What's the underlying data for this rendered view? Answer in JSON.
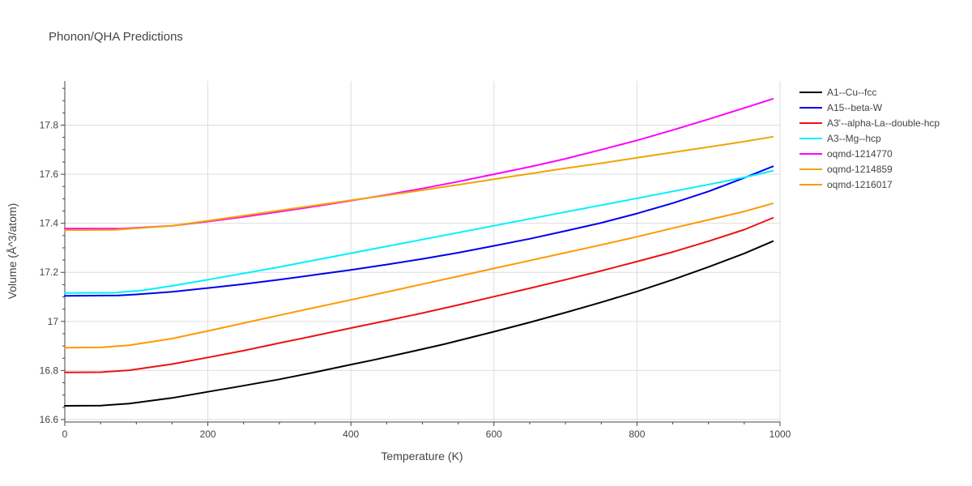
{
  "chart_data": {
    "type": "line",
    "title": "Phonon/QHA Predictions",
    "xlabel": "Temperature (K)",
    "ylabel": "Volume (Å^3/atom)",
    "xlim": [
      0,
      1000
    ],
    "ylim": [
      16.59,
      17.98
    ],
    "xticks": [
      0,
      200,
      400,
      600,
      800,
      1000
    ],
    "xtick_labels": [
      "0",
      "200",
      "400",
      "600",
      "800",
      "1000"
    ],
    "yticks": [
      16.6,
      16.8,
      17.0,
      17.2,
      17.4,
      17.6,
      17.8
    ],
    "ytick_labels": [
      "16.6",
      "16.8",
      "17",
      "17.2",
      "17.4",
      "17.6",
      "17.8"
    ],
    "grid": true,
    "legend_position": "right",
    "series": [
      {
        "name": "A1--Cu--fcc",
        "color": "#000000",
        "x": [
          0,
          50,
          90,
          150,
          200,
          240,
          300,
          350,
          400,
          430,
          480,
          530,
          600,
          650,
          700,
          750,
          800,
          850,
          900,
          950,
          990
        ],
        "y": [
          16.656,
          16.657,
          16.665,
          16.688,
          16.713,
          16.733,
          16.764,
          16.793,
          16.824,
          16.842,
          16.874,
          16.907,
          16.958,
          16.996,
          17.036,
          17.078,
          17.122,
          17.17,
          17.222,
          17.277,
          17.327
        ]
      },
      {
        "name": "A15--beta-W",
        "color": "#0000ee",
        "x": [
          0,
          75,
          100,
          150,
          200,
          250,
          300,
          350,
          400,
          450,
          500,
          550,
          600,
          650,
          700,
          750,
          800,
          850,
          900,
          950,
          990
        ],
        "y": [
          17.104,
          17.106,
          17.11,
          17.121,
          17.136,
          17.152,
          17.17,
          17.19,
          17.21,
          17.232,
          17.255,
          17.28,
          17.308,
          17.337,
          17.369,
          17.402,
          17.44,
          17.482,
          17.53,
          17.585,
          17.632
        ]
      },
      {
        "name": "A3'--alpha-La--double-hcp",
        "color": "#ee1111",
        "x": [
          0,
          50,
          90,
          150,
          200,
          250,
          300,
          350,
          400,
          450,
          500,
          550,
          600,
          650,
          700,
          750,
          800,
          850,
          900,
          950,
          990
        ],
        "y": [
          16.792,
          16.793,
          16.801,
          16.826,
          16.853,
          16.881,
          16.912,
          16.942,
          16.973,
          17.003,
          17.034,
          17.067,
          17.101,
          17.135,
          17.17,
          17.206,
          17.244,
          17.283,
          17.327,
          17.374,
          17.422
        ]
      },
      {
        "name": "A3--Mg--hcp",
        "color": "#00f0ff",
        "x": [
          0,
          70,
          110,
          150,
          200,
          250,
          300,
          350,
          400,
          450,
          500,
          550,
          600,
          650,
          700,
          750,
          800,
          850,
          900,
          950,
          990
        ],
        "y": [
          17.116,
          17.117,
          17.127,
          17.145,
          17.17,
          17.196,
          17.222,
          17.25,
          17.278,
          17.306,
          17.334,
          17.362,
          17.39,
          17.418,
          17.446,
          17.474,
          17.502,
          17.53,
          17.558,
          17.587,
          17.614
        ]
      },
      {
        "name": "oqmd-1214770",
        "color": "#ff00ff",
        "x": [
          0,
          80,
          150,
          200,
          250,
          300,
          350,
          400,
          450,
          500,
          550,
          600,
          650,
          700,
          750,
          800,
          850,
          900,
          950,
          990
        ],
        "y": [
          17.378,
          17.378,
          17.39,
          17.407,
          17.426,
          17.447,
          17.469,
          17.492,
          17.516,
          17.542,
          17.57,
          17.6,
          17.63,
          17.663,
          17.7,
          17.738,
          17.78,
          17.824,
          17.87,
          17.907
        ]
      },
      {
        "name": "oqmd-1214859",
        "color": "#f0a500",
        "x": [
          0,
          70,
          150,
          200,
          250,
          300,
          350,
          400,
          450,
          500,
          550,
          600,
          650,
          700,
          750,
          800,
          850,
          900,
          950,
          990
        ],
        "y": [
          17.372,
          17.373,
          17.39,
          17.41,
          17.431,
          17.452,
          17.473,
          17.494,
          17.514,
          17.535,
          17.557,
          17.58,
          17.602,
          17.624,
          17.645,
          17.667,
          17.689,
          17.711,
          17.733,
          17.753
        ]
      },
      {
        "name": "oqmd-1216017",
        "color": "#ff9900",
        "x": [
          0,
          50,
          90,
          150,
          200,
          250,
          300,
          350,
          400,
          450,
          500,
          550,
          600,
          650,
          700,
          750,
          800,
          850,
          900,
          950,
          990
        ],
        "y": [
          16.893,
          16.894,
          16.903,
          16.93,
          16.961,
          16.993,
          17.025,
          17.057,
          17.088,
          17.12,
          17.152,
          17.184,
          17.216,
          17.248,
          17.28,
          17.312,
          17.345,
          17.38,
          17.414,
          17.448,
          17.481
        ]
      }
    ]
  }
}
